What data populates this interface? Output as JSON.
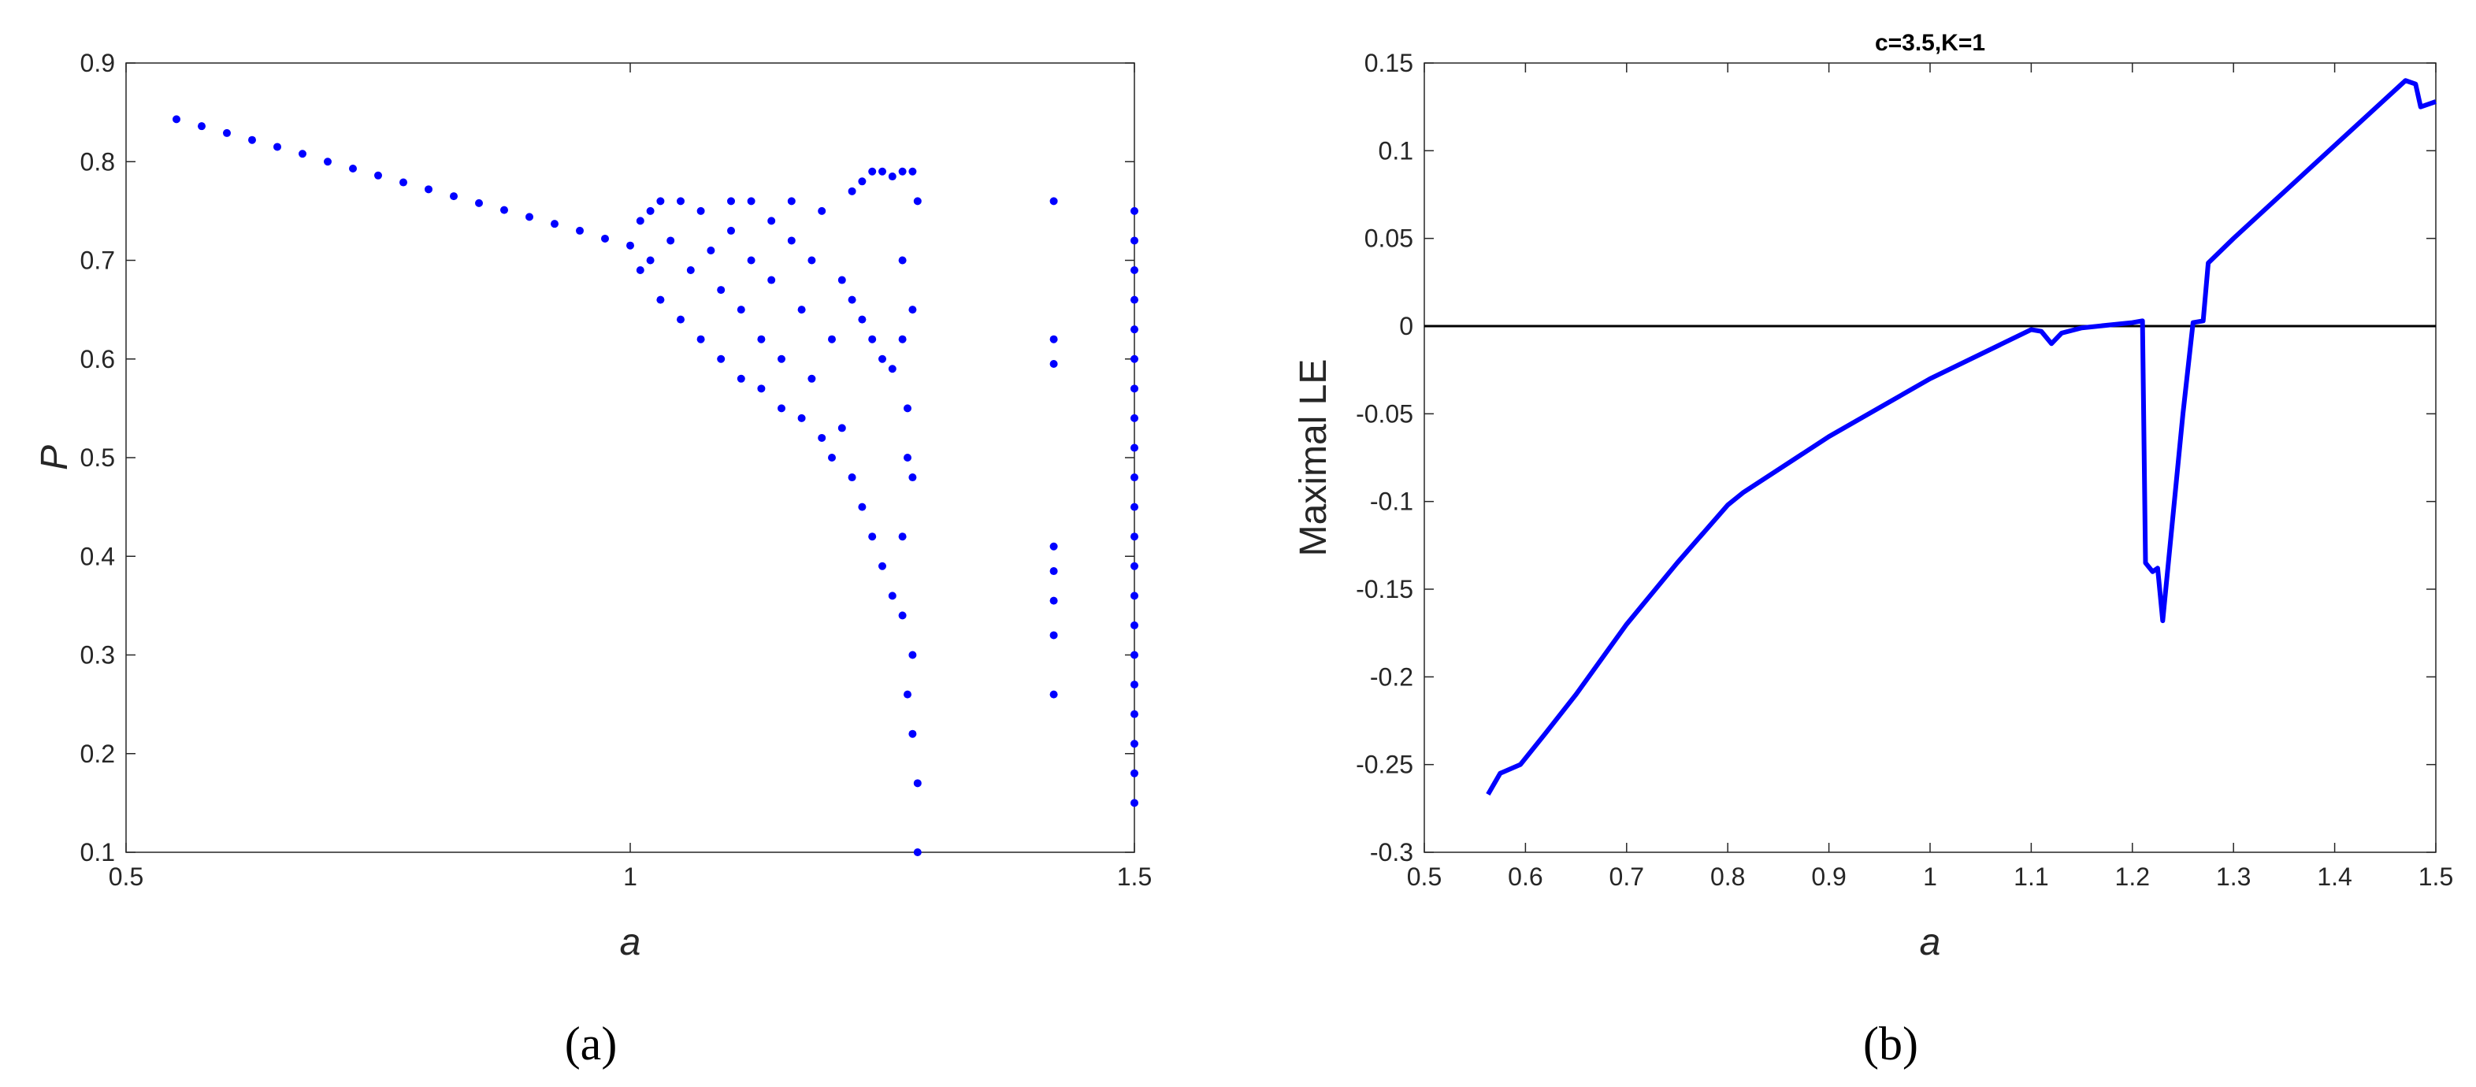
{
  "chart_data": [
    {
      "type": "scatter",
      "caption": "(a)",
      "xlabel": "a",
      "ylabel": "P",
      "color": "#0000ff",
      "xlim": [
        0.5,
        1.5
      ],
      "xticks": [
        0.5,
        1,
        1.5
      ],
      "ylim": [
        0.1,
        0.9
      ],
      "yticks": [
        0.1,
        0.2,
        0.3,
        0.4,
        0.5,
        0.6,
        0.7,
        0.8,
        0.9
      ],
      "x": [
        0.55,
        0.575,
        0.6,
        0.625,
        0.65,
        0.675,
        0.7,
        0.725,
        0.75,
        0.775,
        0.8,
        0.825,
        0.85,
        0.875,
        0.9,
        0.925,
        0.95,
        0.975,
        1.0,
        1.01,
        1.01,
        1.02,
        1.02,
        1.03,
        1.03,
        1.04,
        1.05,
        1.05,
        1.06,
        1.07,
        1.07,
        1.08,
        1.09,
        1.09,
        1.1,
        1.1,
        1.11,
        1.11,
        1.12,
        1.12,
        1.13,
        1.13,
        1.14,
        1.14,
        1.15,
        1.15,
        1.16,
        1.16,
        1.17,
        1.17,
        1.18,
        1.18,
        1.19,
        1.19,
        1.2,
        1.2,
        1.21,
        1.21,
        1.22,
        1.23,
        1.24,
        1.25,
        1.26,
        1.27,
        1.28,
        1.22,
        1.23,
        1.24,
        1.25,
        1.26,
        1.22,
        1.23,
        1.24,
        1.25,
        1.26,
        1.27,
        1.27,
        1.27,
        1.275,
        1.28,
        1.27,
        1.28,
        1.275,
        1.28,
        1.285,
        1.285,
        1.28,
        1.275,
        1.285,
        1.42,
        1.42,
        1.42,
        1.42,
        1.42,
        1.42,
        1.42,
        1.42,
        1.5,
        1.5,
        1.5,
        1.5,
        1.5,
        1.5,
        1.5,
        1.5,
        1.5,
        1.5,
        1.5,
        1.5,
        1.5,
        1.5,
        1.5,
        1.5,
        1.5,
        1.5,
        1.5,
        1.5,
        1.5
      ],
      "y": [
        0.843,
        0.836,
        0.829,
        0.822,
        0.815,
        0.808,
        0.8,
        0.793,
        0.786,
        0.779,
        0.772,
        0.765,
        0.758,
        0.751,
        0.744,
        0.737,
        0.73,
        0.722,
        0.715,
        0.74,
        0.69,
        0.75,
        0.7,
        0.66,
        0.76,
        0.72,
        0.64,
        0.76,
        0.69,
        0.62,
        0.75,
        0.71,
        0.6,
        0.67,
        0.76,
        0.73,
        0.58,
        0.65,
        0.7,
        0.76,
        0.57,
        0.62,
        0.74,
        0.68,
        0.55,
        0.6,
        0.72,
        0.76,
        0.54,
        0.65,
        0.7,
        0.58,
        0.52,
        0.75,
        0.5,
        0.62,
        0.68,
        0.53,
        0.77,
        0.78,
        0.79,
        0.79,
        0.785,
        0.79,
        0.79,
        0.66,
        0.64,
        0.62,
        0.6,
        0.59,
        0.48,
        0.45,
        0.42,
        0.39,
        0.36,
        0.34,
        0.7,
        0.62,
        0.55,
        0.48,
        0.42,
        0.3,
        0.26,
        0.22,
        0.17,
        0.76,
        0.65,
        0.5,
        0.1,
        0.76,
        0.62,
        0.595,
        0.41,
        0.385,
        0.355,
        0.32,
        0.26,
        0.75,
        0.72,
        0.69,
        0.66,
        0.63,
        0.6,
        0.57,
        0.54,
        0.51,
        0.48,
        0.45,
        0.42,
        0.39,
        0.36,
        0.33,
        0.3,
        0.27,
        0.24,
        0.21,
        0.18,
        0.15
      ]
    },
    {
      "type": "line",
      "caption": "(b)",
      "title": "c=3.5,K=1",
      "xlabel": "a",
      "ylabel": "Maximal LE",
      "color": "#0000ff",
      "reference_line": 0,
      "xlim": [
        0.5,
        1.5
      ],
      "xticks": [
        0.5,
        0.6,
        0.7,
        0.8,
        0.9,
        1,
        1.1,
        1.2,
        1.3,
        1.4,
        1.5
      ],
      "ylim": [
        -0.3,
        0.15
      ],
      "yticks": [
        -0.3,
        -0.25,
        -0.2,
        -0.15,
        -0.1,
        -0.05,
        0,
        0.05,
        0.1,
        0.15
      ],
      "x": [
        0.563,
        0.575,
        0.595,
        0.62,
        0.65,
        0.7,
        0.75,
        0.8,
        0.815,
        0.9,
        1.0,
        1.1,
        1.11,
        1.12,
        1.13,
        1.15,
        1.2,
        1.21,
        1.213,
        1.22,
        1.225,
        1.23,
        1.25,
        1.26,
        1.27,
        1.275,
        1.3,
        1.4,
        1.47,
        1.48,
        1.485,
        1.5
      ],
      "y": [
        -0.267,
        -0.255,
        -0.25,
        -0.232,
        -0.21,
        -0.17,
        -0.135,
        -0.102,
        -0.095,
        -0.063,
        -0.03,
        -0.002,
        -0.003,
        -0.01,
        -0.004,
        -0.001,
        0.002,
        0.003,
        -0.135,
        -0.14,
        -0.138,
        -0.168,
        -0.05,
        0.002,
        0.003,
        0.036,
        0.05,
        0.103,
        0.14,
        0.138,
        0.125,
        0.128
      ]
    }
  ]
}
